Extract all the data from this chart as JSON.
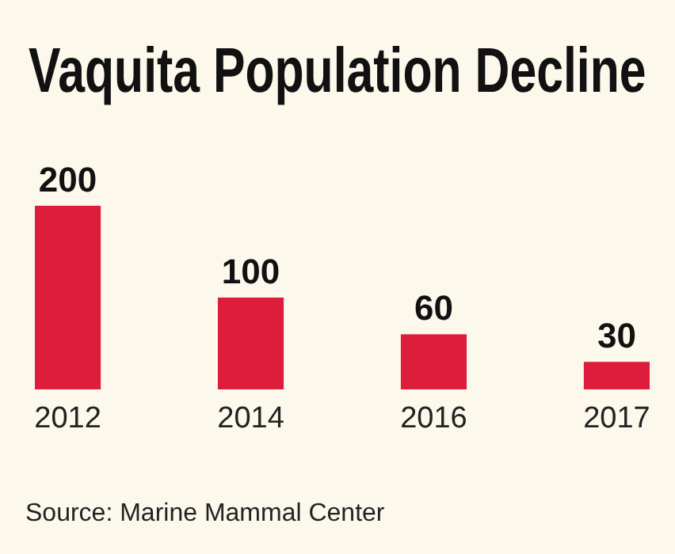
{
  "chart_data": {
    "type": "bar",
    "title": "Vaquita Population Decline",
    "categories": [
      "2012",
      "2014",
      "2016",
      "2017"
    ],
    "values": [
      200,
      100,
      60,
      30
    ],
    "color": "#dc1e3c",
    "data_labels": true,
    "annotations": [
      "Source: Marine Mammal Center"
    ]
  }
}
